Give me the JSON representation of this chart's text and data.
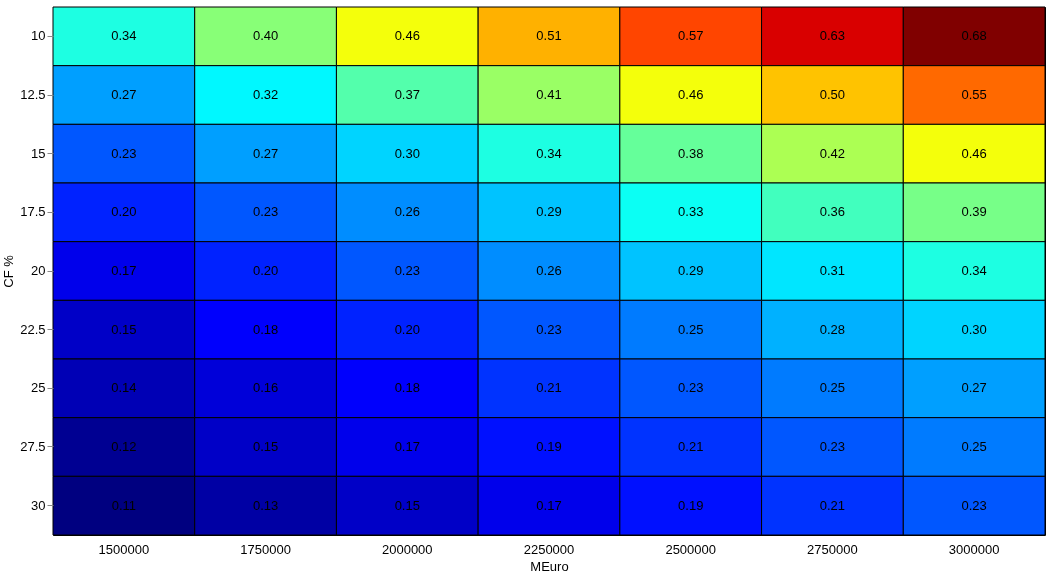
{
  "chart_data": {
    "type": "heatmap",
    "xlabel": "MEuro",
    "ylabel": "CF %",
    "categories": [
      "1500000",
      "1750000",
      "2000000",
      "2250000",
      "2500000",
      "2750000",
      "3000000"
    ],
    "y_categories": [
      "10",
      "12.5",
      "15",
      "17.5",
      "20",
      "22.5",
      "25",
      "27.5",
      "30"
    ],
    "cells": [
      [
        0.34,
        0.4,
        0.46,
        0.51,
        0.57,
        0.63,
        0.68
      ],
      [
        0.27,
        0.32,
        0.37,
        0.41,
        0.46,
        0.5,
        0.55
      ],
      [
        0.23,
        0.27,
        0.3,
        0.34,
        0.38,
        0.42,
        0.46
      ],
      [
        0.2,
        0.23,
        0.26,
        0.29,
        0.33,
        0.36,
        0.39
      ],
      [
        0.17,
        0.2,
        0.23,
        0.26,
        0.29,
        0.31,
        0.34
      ],
      [
        0.15,
        0.18,
        0.2,
        0.23,
        0.25,
        0.28,
        0.3
      ],
      [
        0.14,
        0.16,
        0.18,
        0.21,
        0.23,
        0.25,
        0.27
      ],
      [
        0.12,
        0.15,
        0.17,
        0.19,
        0.21,
        0.23,
        0.25
      ],
      [
        0.11,
        0.13,
        0.15,
        0.17,
        0.19,
        0.21,
        0.23
      ]
    ],
    "cell_labels": [
      [
        "0.34",
        "0.40",
        "0.46",
        "0.51",
        "0.57",
        "0.63",
        "0.68"
      ],
      [
        "0.27",
        "0.32",
        "0.37",
        "0.41",
        "0.46",
        "0.50",
        "0.55"
      ],
      [
        "0.23",
        "0.27",
        "0.30",
        "0.34",
        "0.38",
        "0.42",
        "0.46"
      ],
      [
        "0.20",
        "0.23",
        "0.26",
        "0.29",
        "0.33",
        "0.36",
        "0.39"
      ],
      [
        "0.17",
        "0.20",
        "0.23",
        "0.26",
        "0.29",
        "0.31",
        "0.34"
      ],
      [
        "0.15",
        "0.18",
        "0.20",
        "0.23",
        "0.25",
        "0.28",
        "0.30"
      ],
      [
        "0.14",
        "0.16",
        "0.18",
        "0.21",
        "0.23",
        "0.25",
        "0.27"
      ],
      [
        "0.12",
        "0.15",
        "0.17",
        "0.19",
        "0.21",
        "0.23",
        "0.25"
      ],
      [
        "0.11",
        "0.13",
        "0.15",
        "0.17",
        "0.19",
        "0.21",
        "0.23"
      ]
    ]
  }
}
